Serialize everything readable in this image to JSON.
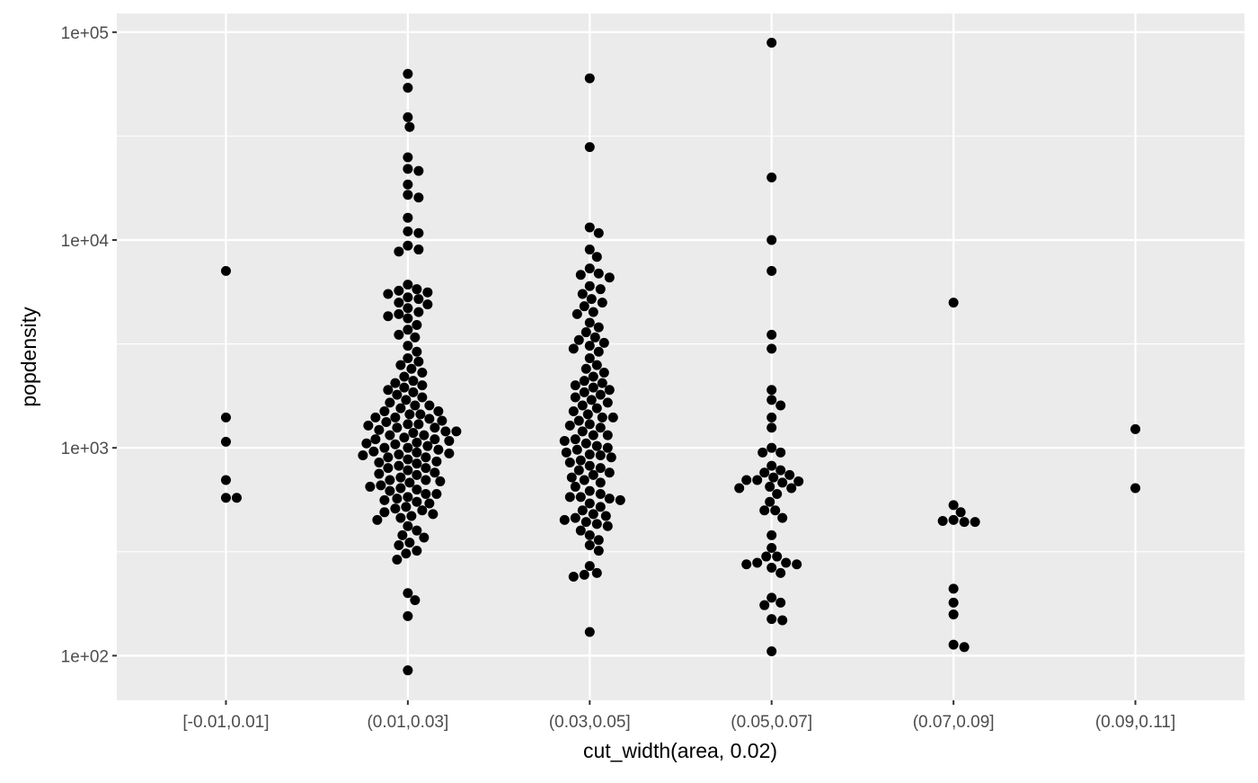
{
  "chart_data": {
    "type": "beeswarm",
    "x_label": "cut_width(area, 0.02)",
    "y_label": "popdensity",
    "categories": [
      "[-0.01,0.01]",
      "(0.01,0.03]",
      "(0.03,0.05]",
      "(0.05,0.07]",
      "(0.07,0.09]",
      "(0.09,0.11]"
    ],
    "values": [
      [
        7100,
        1400,
        1070,
        700,
        575,
        575
      ],
      [
        63000,
        54000,
        39000,
        35000,
        25000,
        22000,
        21500,
        18500,
        16500,
        16000,
        12800,
        11000,
        10800,
        9400,
        9000,
        8800,
        6100,
        5800,
        5700,
        5600,
        5500,
        5300,
        5200,
        5000,
        4900,
        4700,
        4500,
        4400,
        4300,
        4200,
        3900,
        3700,
        3500,
        3400,
        3100,
        2900,
        2700,
        2600,
        2500,
        2400,
        2300,
        2200,
        2100,
        2050,
        2000,
        1950,
        1900,
        1850,
        1800,
        1750,
        1700,
        1650,
        1600,
        1600,
        1550,
        1500,
        1500,
        1450,
        1450,
        1400,
        1400,
        1380,
        1350,
        1330,
        1300,
        1300,
        1280,
        1250,
        1250,
        1220,
        1200,
        1200,
        1180,
        1150,
        1150,
        1120,
        1100,
        1100,
        1080,
        1060,
        1050,
        1040,
        1020,
        1000,
        1000,
        980,
        960,
        950,
        940,
        930,
        920,
        900,
        900,
        880,
        860,
        850,
        840,
        820,
        800,
        800,
        780,
        760,
        750,
        740,
        720,
        700,
        700,
        690,
        680,
        660,
        650,
        640,
        630,
        620,
        600,
        600,
        580,
        570,
        560,
        550,
        540,
        520,
        510,
        500,
        490,
        480,
        470,
        460,
        450,
        420,
        400,
        380,
        370,
        350,
        340,
        320,
        310,
        290,
        200,
        185,
        155,
        85
      ],
      [
        60000,
        28000,
        11500,
        10800,
        9000,
        8300,
        7300,
        6900,
        6800,
        6600,
        6000,
        5800,
        5500,
        5200,
        5000,
        4800,
        4500,
        4400,
        4000,
        3800,
        3600,
        3400,
        3300,
        3200,
        3100,
        3000,
        2900,
        2700,
        2500,
        2400,
        2300,
        2200,
        2100,
        2050,
        2000,
        1950,
        1900,
        1850,
        1800,
        1750,
        1700,
        1650,
        1600,
        1550,
        1500,
        1450,
        1400,
        1400,
        1350,
        1300,
        1280,
        1250,
        1200,
        1150,
        1150,
        1100,
        1080,
        1050,
        1020,
        1000,
        980,
        950,
        930,
        920,
        900,
        870,
        850,
        820,
        800,
        780,
        760,
        740,
        720,
        700,
        680,
        650,
        620,
        600,
        580,
        580,
        570,
        560,
        540,
        520,
        500,
        480,
        470,
        460,
        450,
        440,
        430,
        420,
        400,
        380,
        360,
        340,
        320,
        270,
        250,
        245,
        240,
        130
      ],
      [
        89000,
        20000,
        10000,
        7100,
        3500,
        3000,
        1900,
        1700,
        1600,
        1400,
        1250,
        1000,
        950,
        950,
        820,
        780,
        760,
        740,
        720,
        700,
        700,
        690,
        680,
        650,
        640,
        640,
        600,
        550,
        500,
        500,
        460,
        380,
        330,
        300,
        300,
        280,
        280,
        275,
        275,
        265,
        250,
        190,
        180,
        175,
        150,
        148,
        105
      ],
      [
        5000,
        530,
        490,
        450,
        445,
        440,
        440,
        210,
        180,
        158,
        113,
        110
      ],
      [
        1230,
        640
      ]
    ],
    "color": "#000000",
    "log_y": true,
    "ylim": [
      61,
      123000
    ],
    "yticks": [
      {
        "value": 100,
        "label": "1e+02"
      },
      {
        "value": 1000,
        "label": "1e+03"
      },
      {
        "value": 10000,
        "label": "1e+04"
      },
      {
        "value": 100000,
        "label": "1e+05"
      }
    ],
    "y_minor_ticks": [
      316.2,
      3162,
      31623
    ],
    "grid": true
  }
}
